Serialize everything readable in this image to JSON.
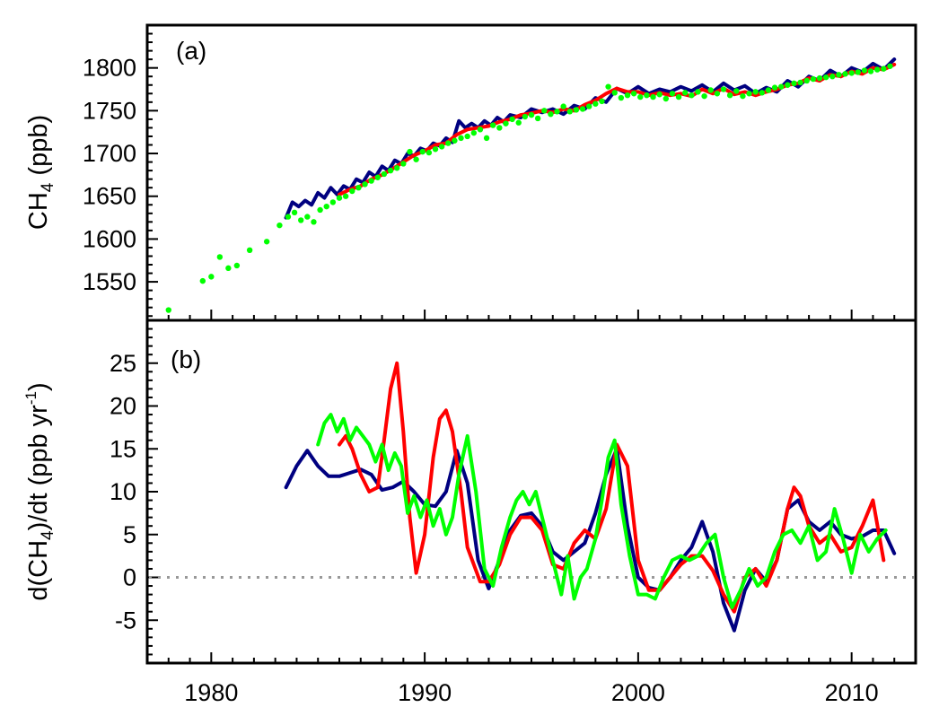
{
  "chart_data": [
    {
      "type": "line",
      "panel_label": "(a)",
      "ylabel": "CH4 (ppb)",
      "ylabel_parts": {
        "base": "CH",
        "sub": "4",
        "unit": " (ppb)"
      },
      "xlim": [
        1977,
        2013
      ],
      "ylim": [
        1505,
        1850
      ],
      "yticks": [
        1550,
        1600,
        1650,
        1700,
        1750,
        1800
      ],
      "xticks": [
        1980,
        1990,
        2000,
        2010
      ],
      "show_xtick_labels": false,
      "grid": false,
      "legend": "none",
      "series": [
        {
          "color": "#000080",
          "style": "line",
          "x": [
            1983.5,
            1983.8,
            1984.1,
            1984.4,
            1984.7,
            1985.0,
            1985.3,
            1985.6,
            1985.9,
            1986.2,
            1986.5,
            1986.8,
            1987.1,
            1987.4,
            1987.7,
            1988.0,
            1988.3,
            1988.6,
            1988.9,
            1989.2,
            1989.5,
            1989.8,
            1990.1,
            1990.4,
            1990.7,
            1991.0,
            1991.3,
            1991.6,
            1991.9,
            1992.2,
            1992.5,
            1992.8,
            1993.1,
            1993.4,
            1993.7,
            1994.0,
            1994.5,
            1995.0,
            1995.5,
            1996.0,
            1996.5,
            1997.0,
            1997.5,
            1998.0,
            1998.5,
            1999.0,
            1999.5,
            2000.0,
            2000.5,
            2001.0,
            2001.5,
            2002.0,
            2002.5,
            2003.0,
            2003.5,
            2004.0,
            2004.5,
            2005.0,
            2005.5,
            2006.0,
            2006.5,
            2007.0,
            2007.5,
            2008.0,
            2008.5,
            2009.0,
            2009.5,
            2010.0,
            2010.5,
            2011.0,
            2011.5,
            2012.0
          ],
          "y": [
            1625,
            1643,
            1638,
            1645,
            1640,
            1654,
            1648,
            1660,
            1652,
            1662,
            1658,
            1670,
            1666,
            1678,
            1673,
            1685,
            1680,
            1692,
            1688,
            1700,
            1697,
            1706,
            1703,
            1712,
            1709,
            1718,
            1713,
            1738,
            1730,
            1735,
            1730,
            1738,
            1733,
            1742,
            1737,
            1745,
            1742,
            1752,
            1748,
            1752,
            1746,
            1756,
            1752,
            1765,
            1760,
            1776,
            1770,
            1778,
            1770,
            1775,
            1772,
            1778,
            1773,
            1780,
            1772,
            1782,
            1774,
            1779,
            1770,
            1777,
            1772,
            1785,
            1778,
            1790,
            1785,
            1797,
            1790,
            1800,
            1795,
            1805,
            1798,
            1810
          ]
        },
        {
          "color": "#ff0000",
          "style": "line",
          "x": [
            1986.0,
            1986.5,
            1987.0,
            1987.5,
            1988.0,
            1988.5,
            1989.0,
            1989.5,
            1990.0,
            1990.5,
            1991.0,
            1991.5,
            1992.0,
            1992.5,
            1993.0,
            1993.5,
            1994.0,
            1994.5,
            1995.0,
            1995.5,
            1996.0,
            1996.5,
            1997.0,
            1997.5,
            1998.0,
            1998.5,
            1999.0,
            1999.5,
            2000.0,
            2000.5,
            2001.0,
            2001.5,
            2002.0,
            2002.5,
            2003.0,
            2003.5,
            2004.0,
            2004.5,
            2005.0,
            2005.5,
            2006.0,
            2006.5,
            2007.0,
            2007.5,
            2008.0,
            2008.5,
            2009.0,
            2009.5,
            2010.0,
            2010.5,
            2011.0,
            2011.5,
            2012.0
          ],
          "y": [
            1652,
            1658,
            1662,
            1670,
            1675,
            1682,
            1690,
            1698,
            1703,
            1710,
            1712,
            1722,
            1728,
            1730,
            1732,
            1737,
            1740,
            1745,
            1747,
            1750,
            1748,
            1752,
            1750,
            1757,
            1762,
            1770,
            1776,
            1772,
            1772,
            1768,
            1771,
            1768,
            1770,
            1767,
            1775,
            1770,
            1776,
            1769,
            1772,
            1768,
            1772,
            1775,
            1780,
            1782,
            1788,
            1785,
            1792,
            1790,
            1796,
            1793,
            1800,
            1798,
            1804
          ]
        },
        {
          "color": "#00ff00",
          "style": "points",
          "x": [
            1978.0,
            1979.6,
            1980.0,
            1980.4,
            1980.8,
            1981.2,
            1981.8,
            1982.6,
            1983.2,
            1983.6,
            1983.9,
            1984.2,
            1984.5,
            1984.8,
            1985.1,
            1985.4,
            1985.7,
            1986.0,
            1986.3,
            1986.6,
            1986.9,
            1987.2,
            1987.5,
            1987.8,
            1988.1,
            1988.4,
            1988.7,
            1989.0,
            1989.3,
            1989.6,
            1989.9,
            1990.2,
            1990.5,
            1990.8,
            1991.1,
            1991.4,
            1991.7,
            1992.0,
            1992.3,
            1992.6,
            1992.9,
            1993.2,
            1993.5,
            1993.8,
            1994.1,
            1994.4,
            1994.7,
            1995.0,
            1995.3,
            1995.6,
            1995.9,
            1996.2,
            1996.5,
            1996.8,
            1997.1,
            1997.4,
            1997.7,
            1998.0,
            1998.3,
            1998.6,
            1998.9,
            1999.2,
            1999.5,
            1999.8,
            2000.1,
            2000.4,
            2000.7,
            2001.0,
            2001.3,
            2001.6,
            2001.9,
            2002.2,
            2002.5,
            2002.8,
            2003.1,
            2003.4,
            2003.7,
            2004.0,
            2004.3,
            2004.6,
            2004.9,
            2005.2,
            2005.5,
            2005.8,
            2006.1,
            2006.4,
            2006.7,
            2007.0,
            2007.3,
            2007.6,
            2007.9,
            2008.2,
            2008.5,
            2008.8,
            2009.1,
            2009.4,
            2009.7,
            2010.0,
            2010.3,
            2010.6,
            2010.9,
            2011.2,
            2011.5,
            2011.8
          ],
          "y": [
            1517,
            1551,
            1556,
            1579,
            1566,
            1569,
            1587,
            1597,
            1616,
            1626,
            1631,
            1622,
            1626,
            1620,
            1634,
            1638,
            1643,
            1648,
            1650,
            1656,
            1660,
            1664,
            1668,
            1672,
            1676,
            1680,
            1683,
            1688,
            1702,
            1693,
            1702,
            1701,
            1705,
            1708,
            1712,
            1715,
            1718,
            1720,
            1724,
            1728,
            1718,
            1733,
            1730,
            1735,
            1740,
            1736,
            1743,
            1745,
            1741,
            1750,
            1746,
            1749,
            1755,
            1749,
            1751,
            1752,
            1755,
            1758,
            1761,
            1778,
            1771,
            1765,
            1768,
            1770,
            1766,
            1768,
            1766,
            1769,
            1764,
            1770,
            1766,
            1771,
            1768,
            1772,
            1767,
            1774,
            1770,
            1775,
            1768,
            1773,
            1767,
            1770,
            1772,
            1771,
            1774,
            1777,
            1778,
            1780,
            1782,
            1783,
            1785,
            1787,
            1788,
            1789,
            1790,
            1792,
            1793,
            1794,
            1795,
            1797,
            1796,
            1798,
            1799,
            1802
          ]
        }
      ]
    },
    {
      "type": "line",
      "panel_label": "(b)",
      "ylabel": "d(CH4)/dt (ppb yr-1)",
      "ylabel_parts": {
        "p1": "d(CH",
        "sub": "4",
        "p2": ")/dt (ppb yr",
        "sup": "-1",
        "p3": ")"
      },
      "xlim": [
        1977,
        2013
      ],
      "ylim": [
        -10,
        30
      ],
      "yticks": [
        -5,
        0,
        5,
        10,
        15,
        20,
        25
      ],
      "xticks": [
        1980,
        1990,
        2000,
        2010
      ],
      "xtick_labels": [
        "1980",
        "1990",
        "2000",
        "2010"
      ],
      "grid": false,
      "legend": "none",
      "zero_line": {
        "y": 0,
        "color": "#999999",
        "style": "dotted"
      },
      "series": [
        {
          "color": "#000080",
          "style": "line",
          "x": [
            1983.5,
            1984.0,
            1984.5,
            1985.0,
            1985.5,
            1986.0,
            1986.5,
            1987.0,
            1987.5,
            1988.0,
            1988.5,
            1989.0,
            1989.5,
            1990.0,
            1990.5,
            1991.0,
            1991.5,
            1992.0,
            1992.5,
            1993.0,
            1993.5,
            1994.0,
            1994.5,
            1995.0,
            1995.5,
            1996.0,
            1996.5,
            1997.0,
            1997.5,
            1998.0,
            1998.5,
            1999.0,
            1999.5,
            2000.0,
            2000.5,
            2001.0,
            2001.5,
            2002.0,
            2002.5,
            2003.0,
            2003.5,
            2004.0,
            2004.5,
            2005.0,
            2005.5,
            2006.0,
            2006.5,
            2007.0,
            2007.5,
            2008.0,
            2008.5,
            2009.0,
            2009.5,
            2010.0,
            2010.5,
            2011.0,
            2011.5,
            2012.0
          ],
          "y": [
            10.5,
            13,
            14.8,
            13,
            11.8,
            11.8,
            12.2,
            12.6,
            12,
            10.2,
            10.5,
            11.2,
            10,
            8.5,
            8.3,
            10,
            14.8,
            11,
            2,
            -1.3,
            2,
            5.5,
            7.2,
            7.5,
            6,
            3,
            2,
            3,
            4,
            7.5,
            12,
            15,
            6,
            0,
            -1.2,
            -1.5,
            0,
            2,
            3.5,
            6.5,
            3,
            -3,
            -6.2,
            -1.5,
            1,
            -0.5,
            2,
            8,
            9,
            6.5,
            5.5,
            6.5,
            5,
            4.5,
            4.8,
            5.5,
            5.5,
            2.8
          ]
        },
        {
          "color": "#ff0000",
          "style": "line",
          "x": [
            1986.0,
            1986.3,
            1986.6,
            1987.0,
            1987.4,
            1987.8,
            1988.1,
            1988.4,
            1988.7,
            1989.0,
            1989.3,
            1989.6,
            1990.0,
            1990.4,
            1990.7,
            1991.0,
            1991.3,
            1991.7,
            1992.0,
            1992.3,
            1992.6,
            1993.0,
            1993.5,
            1994.0,
            1994.5,
            1995.0,
            1995.5,
            1996.0,
            1996.5,
            1997.0,
            1997.5,
            1998.0,
            1998.5,
            1999.0,
            1999.5,
            2000.0,
            2000.5,
            2001.0,
            2001.5,
            2002.0,
            2002.5,
            2003.0,
            2003.5,
            2004.0,
            2004.5,
            2005.0,
            2005.5,
            2006.0,
            2006.5,
            2007.0,
            2007.3,
            2007.6,
            2008.0,
            2008.5,
            2009.0,
            2009.5,
            2010.0,
            2010.5,
            2011.0,
            2011.5
          ],
          "y": [
            15.5,
            16.5,
            15,
            12,
            10,
            10.5,
            16,
            22,
            25,
            17,
            7,
            0.5,
            5,
            14,
            18.5,
            19.5,
            17,
            10,
            3.5,
            1.5,
            -0.5,
            -0.5,
            1.5,
            5,
            7,
            7,
            5.5,
            1.5,
            1,
            4,
            5.5,
            4.5,
            8,
            15.5,
            13,
            2,
            -1.5,
            -1.5,
            0,
            1.5,
            2.5,
            2.5,
            0.8,
            -2,
            -4,
            0,
            1,
            -1,
            2,
            8,
            10.5,
            9.5,
            6,
            4,
            5,
            3,
            3.5,
            6,
            9,
            2
          ]
        },
        {
          "color": "#00ff00",
          "style": "line",
          "x": [
            1985.0,
            1985.3,
            1985.6,
            1985.9,
            1986.2,
            1986.5,
            1986.8,
            1987.1,
            1987.4,
            1987.7,
            1988.0,
            1988.3,
            1988.6,
            1988.9,
            1989.2,
            1989.5,
            1989.8,
            1990.1,
            1990.4,
            1990.7,
            1991.0,
            1991.3,
            1991.6,
            1992.0,
            1992.4,
            1992.8,
            1993.2,
            1993.6,
            1994.0,
            1994.3,
            1994.6,
            1994.9,
            1995.2,
            1995.5,
            1995.8,
            1996.1,
            1996.4,
            1996.7,
            1997.0,
            1997.3,
            1997.6,
            1998.0,
            1998.3,
            1998.6,
            1998.9,
            1999.2,
            1999.6,
            2000.0,
            2000.4,
            2000.8,
            2001.2,
            2001.6,
            2002.0,
            2002.4,
            2002.8,
            2003.2,
            2003.6,
            2004.0,
            2004.4,
            2004.8,
            2005.2,
            2005.6,
            2006.0,
            2006.4,
            2006.8,
            2007.2,
            2007.6,
            2008.0,
            2008.4,
            2008.8,
            2009.2,
            2009.6,
            2010.0,
            2010.4,
            2010.8,
            2011.2,
            2011.6
          ],
          "y": [
            15.5,
            18,
            19,
            17,
            18.5,
            16,
            17.5,
            16.5,
            15.5,
            13.5,
            15.5,
            12.5,
            14.5,
            13,
            7.5,
            9.5,
            7,
            9,
            6,
            8,
            5,
            7,
            12,
            16.5,
            10,
            1,
            -1,
            3.5,
            7,
            9,
            10,
            8.5,
            10,
            7,
            4,
            1,
            -2,
            2.5,
            -2.5,
            0,
            1,
            4.5,
            9,
            14,
            16,
            8.5,
            2.5,
            -2,
            -2,
            -2.5,
            0,
            2,
            2.5,
            2,
            2.5,
            4,
            5,
            0,
            -3.5,
            -1.5,
            1,
            -1,
            0,
            3,
            5,
            5.5,
            4,
            6,
            2,
            3,
            8,
            4.5,
            0.5,
            5,
            3,
            4.5,
            5.5
          ]
        }
      ]
    }
  ]
}
